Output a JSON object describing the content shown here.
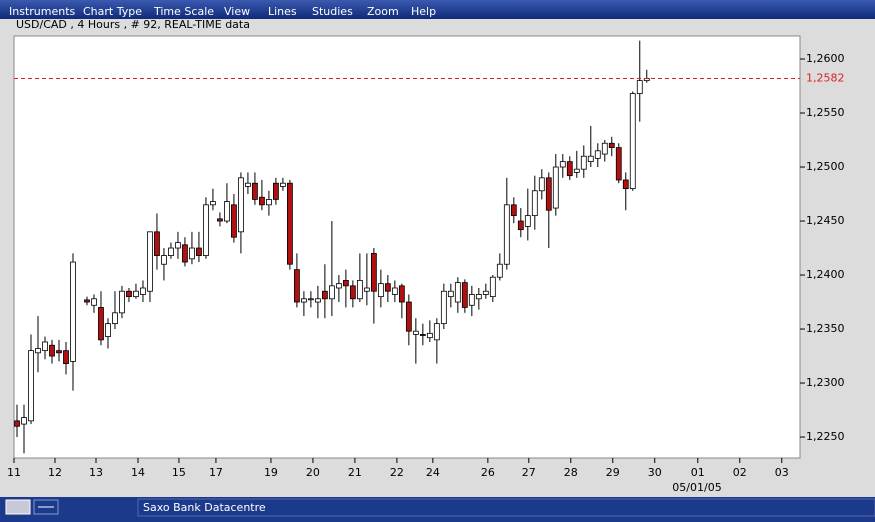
{
  "menu": [
    "Instruments",
    "Chart Type",
    "Time Scale",
    "View",
    "Lines",
    "Studies",
    "Zoom",
    "Help"
  ],
  "chart_data": {
    "type": "candlestick",
    "title": "USD/CAD , 4 Hours , # 92, REAL-TIME data",
    "x": [
      0,
      1,
      2,
      3,
      4,
      5,
      6,
      7,
      8,
      10,
      11,
      12,
      13,
      14,
      15,
      16,
      17,
      18,
      19,
      20,
      21,
      22,
      23,
      24,
      25,
      26,
      27,
      28,
      29,
      30,
      31,
      32,
      33,
      34,
      35,
      36,
      37,
      38,
      39,
      40,
      41,
      42,
      43,
      44,
      45,
      46,
      47,
      48,
      49,
      50,
      51,
      52,
      53,
      54,
      55,
      56,
      57,
      58,
      59,
      60,
      61,
      62,
      63,
      64,
      65,
      66,
      67,
      68,
      69,
      70,
      71,
      72,
      73,
      74,
      75,
      76,
      77,
      78,
      79,
      80,
      81,
      82,
      83,
      84,
      85,
      86,
      87,
      88,
      89,
      90
    ],
    "open": [
      1.2265,
      1.2262,
      1.2265,
      1.2328,
      1.233,
      1.2335,
      1.233,
      1.233,
      1.232,
      1.2377,
      1.2372,
      1.237,
      1.2343,
      1.2355,
      1.2365,
      1.2385,
      1.238,
      1.2382,
      1.2385,
      1.244,
      1.241,
      1.2418,
      1.2425,
      1.2428,
      1.2415,
      1.2425,
      1.2418,
      1.2465,
      1.2452,
      1.245,
      1.2465,
      1.244,
      1.2482,
      1.2485,
      1.2472,
      1.2465,
      1.2485,
      1.2482,
      1.2485,
      1.2405,
      1.2375,
      1.2378,
      1.2375,
      1.2385,
      1.2378,
      1.2388,
      1.2395,
      1.239,
      1.2378,
      1.2385,
      1.242,
      1.238,
      1.2392,
      1.2382,
      1.239,
      1.2375,
      1.2345,
      1.2345,
      1.2342,
      1.234,
      1.2355,
      1.238,
      1.2375,
      1.2393,
      1.2372,
      1.2378,
      1.2382,
      1.238,
      1.2398,
      1.241,
      1.2465,
      1.245,
      1.2445,
      1.2455,
      1.2478,
      1.249,
      1.2462,
      1.25,
      1.2505,
      1.2495,
      1.2498,
      1.2505,
      1.2508,
      1.2512,
      1.2522,
      1.2518,
      1.2488,
      1.248,
      1.2568,
      1.258
    ],
    "high": [
      1.228,
      1.228,
      1.2345,
      1.2362,
      1.2343,
      1.234,
      1.234,
      1.2338,
      1.242,
      1.238,
      1.2382,
      1.2385,
      1.236,
      1.2385,
      1.239,
      1.2388,
      1.2392,
      1.2395,
      1.244,
      1.2457,
      1.2425,
      1.243,
      1.244,
      1.2435,
      1.244,
      1.244,
      1.2472,
      1.248,
      1.2458,
      1.2485,
      1.2475,
      1.2495,
      1.2495,
      1.2495,
      1.2488,
      1.2478,
      1.249,
      1.249,
      1.2488,
      1.242,
      1.2385,
      1.2385,
      1.239,
      1.241,
      1.245,
      1.24,
      1.2405,
      1.2395,
      1.242,
      1.242,
      1.2425,
      1.2405,
      1.24,
      1.2395,
      1.2392,
      1.2382,
      1.236,
      1.2355,
      1.2358,
      1.236,
      1.2392,
      1.2392,
      1.2398,
      1.2396,
      1.239,
      1.2388,
      1.2392,
      1.24,
      1.242,
      1.249,
      1.2472,
      1.2462,
      1.248,
      1.2492,
      1.2498,
      1.2495,
      1.2512,
      1.2512,
      1.251,
      1.2515,
      1.252,
      1.2538,
      1.2522,
      1.2525,
      1.2528,
      1.2522,
      1.2495,
      1.257,
      1.2617,
      1.259
    ],
    "low": [
      1.225,
      1.2235,
      1.2262,
      1.231,
      1.2322,
      1.2318,
      1.232,
      1.2308,
      1.2293,
      1.2372,
      1.2365,
      1.2335,
      1.2332,
      1.235,
      1.236,
      1.2375,
      1.2378,
      1.2375,
      1.2375,
      1.2405,
      1.2395,
      1.2415,
      1.2415,
      1.2408,
      1.241,
      1.2412,
      1.2415,
      1.246,
      1.2445,
      1.2448,
      1.243,
      1.242,
      1.2475,
      1.2465,
      1.246,
      1.2455,
      1.2465,
      1.2478,
      1.2405,
      1.237,
      1.2362,
      1.237,
      1.236,
      1.236,
      1.2362,
      1.2375,
      1.237,
      1.237,
      1.2375,
      1.2372,
      1.2355,
      1.237,
      1.2375,
      1.2375,
      1.236,
      1.2335,
      1.2318,
      1.2335,
      1.2338,
      1.2318,
      1.235,
      1.237,
      1.2365,
      1.2365,
      1.2362,
      1.2368,
      1.2378,
      1.2375,
      1.2395,
      1.2405,
      1.2448,
      1.2435,
      1.2432,
      1.2442,
      1.247,
      1.2425,
      1.2455,
      1.249,
      1.2488,
      1.249,
      1.249,
      1.25,
      1.25,
      1.2505,
      1.251,
      1.2485,
      1.246,
      1.2478,
      1.2542,
      1.2578
    ],
    "close": [
      1.226,
      1.2268,
      1.233,
      1.2332,
      1.2338,
      1.2325,
      1.2328,
      1.2318,
      1.2412,
      1.2375,
      1.2378,
      1.234,
      1.2355,
      1.2365,
      1.2385,
      1.238,
      1.2385,
      1.2388,
      1.244,
      1.2418,
      1.2418,
      1.2425,
      1.243,
      1.2412,
      1.2425,
      1.2418,
      1.2465,
      1.2468,
      1.245,
      1.2468,
      1.2435,
      1.249,
      1.2485,
      1.247,
      1.2465,
      1.247,
      1.247,
      1.2485,
      1.241,
      1.2375,
      1.2378,
      1.2378,
      1.2378,
      1.2378,
      1.239,
      1.2392,
      1.239,
      1.2378,
      1.2395,
      1.2388,
      1.2385,
      1.2392,
      1.2385,
      1.2388,
      1.2375,
      1.2348,
      1.2348,
      1.2344,
      1.2346,
      1.2355,
      1.2385,
      1.2385,
      1.2393,
      1.237,
      1.2382,
      1.2382,
      1.2385,
      1.2398,
      1.241,
      1.2465,
      1.2455,
      1.2442,
      1.2455,
      1.2478,
      1.249,
      1.246,
      1.25,
      1.2505,
      1.2492,
      1.2498,
      1.251,
      1.251,
      1.2515,
      1.2522,
      1.2518,
      1.2488,
      1.248,
      1.2568,
      1.258,
      1.2582
    ],
    "up_color": "#ffffff",
    "down_color": "#b01010",
    "xlim": [
      -0.43,
      111.9
    ],
    "xticks": [
      {
        "value": -0.43,
        "label": "11"
      },
      {
        "value": 5.43,
        "label": "12"
      },
      {
        "value": 11.29,
        "label": "13"
      },
      {
        "value": 17.29,
        "label": "14"
      },
      {
        "value": 23.14,
        "label": "15"
      },
      {
        "value": 28.43,
        "label": "17"
      },
      {
        "value": 36.29,
        "label": "19"
      },
      {
        "value": 42.29,
        "label": "20"
      },
      {
        "value": 48.29,
        "label": "21"
      },
      {
        "value": 54.29,
        "label": "22"
      },
      {
        "value": 59.43,
        "label": "24"
      },
      {
        "value": 67.29,
        "label": "26"
      },
      {
        "value": 73.14,
        "label": "27"
      },
      {
        "value": 79.14,
        "label": "28"
      },
      {
        "value": 85.14,
        "label": "29"
      },
      {
        "value": 91.14,
        "label": "30"
      },
      {
        "value": 97.29,
        "label": "01"
      },
      {
        "value": 103.29,
        "label": "02"
      },
      {
        "value": 109.29,
        "label": "03"
      }
    ],
    "date_label": "05/01/05",
    "ylim": [
      1.22306,
      1.26213
    ],
    "yticks": [
      {
        "value": 1.225,
        "label": "1,2250"
      },
      {
        "value": 1.23,
        "label": "1,2300"
      },
      {
        "value": 1.235,
        "label": "1,2350"
      },
      {
        "value": 1.24,
        "label": "1,2400"
      },
      {
        "value": 1.245,
        "label": "1,2450"
      },
      {
        "value": 1.25,
        "label": "1,2500"
      },
      {
        "value": 1.255,
        "label": "1,2550"
      },
      {
        "value": 1.26,
        "label": "1,2600"
      }
    ],
    "current_price": {
      "value": 1.2582,
      "label": "1,2582",
      "color": "#e02020"
    }
  },
  "status": {
    "source": "Saxo Bank Datacentre"
  }
}
